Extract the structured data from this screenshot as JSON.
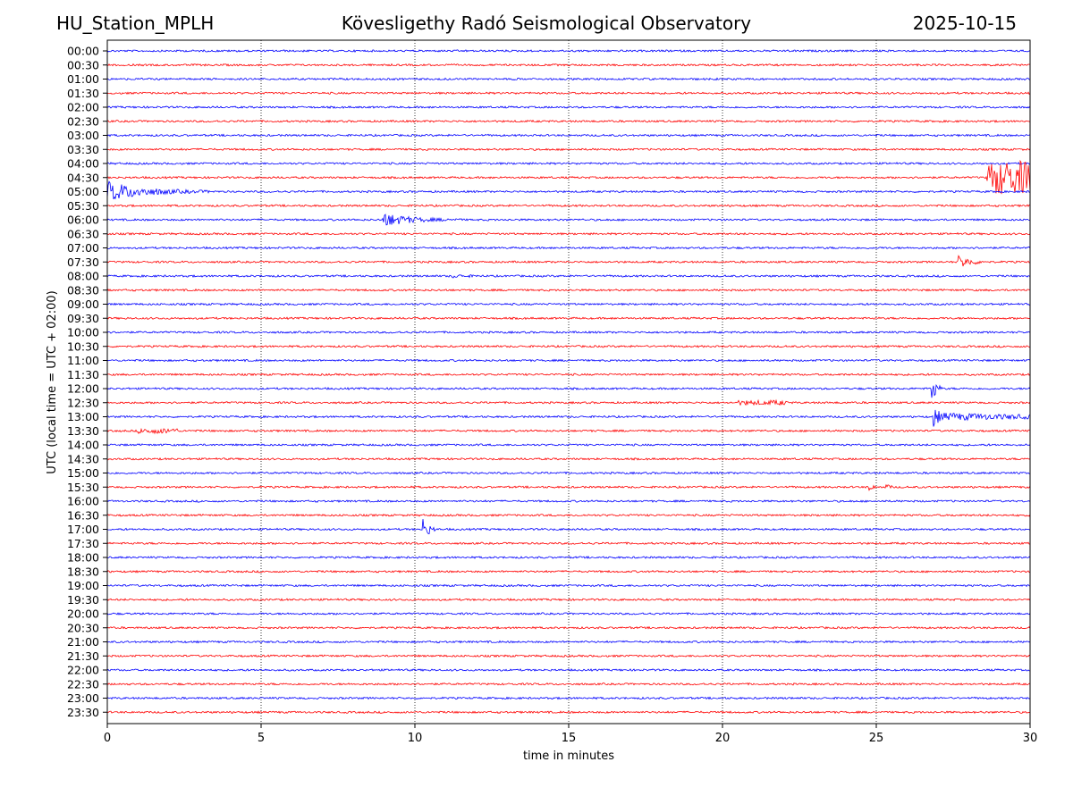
{
  "header": {
    "station": "HU_Station_MPLH",
    "title": "Kövesligethy Radó Seismological Observatory",
    "date": "2025-10-15"
  },
  "chart_data": {
    "type": "line",
    "subtype": "helicorder",
    "xlabel": "time in minutes",
    "ylabel": "UTC (local time = UTC + 02:00)",
    "xlim": [
      0,
      30
    ],
    "xticks": [
      "0",
      "5",
      "10",
      "15",
      "20",
      "25",
      "30"
    ],
    "grid": "vertical dotted at x ticks",
    "row_labels": [
      "00:00",
      "00:30",
      "01:00",
      "01:30",
      "02:00",
      "02:30",
      "03:00",
      "03:30",
      "04:00",
      "04:30",
      "05:00",
      "05:30",
      "06:00",
      "06:30",
      "07:00",
      "07:30",
      "08:00",
      "08:30",
      "09:00",
      "09:30",
      "10:00",
      "10:30",
      "11:00",
      "11:30",
      "12:00",
      "12:30",
      "13:00",
      "13:30",
      "14:00",
      "14:30",
      "15:00",
      "15:30",
      "16:00",
      "16:30",
      "17:00",
      "17:30",
      "18:00",
      "18:30",
      "19:00",
      "19:30",
      "20:00",
      "20:30",
      "21:00",
      "21:30",
      "22:00",
      "22:30",
      "23:00",
      "23:30"
    ],
    "colors": [
      "#0000ff",
      "#ff0000"
    ],
    "events": [
      {
        "row": "04:30",
        "start_min": 28.6,
        "duration_min": 1.4,
        "amp": 3.2,
        "decay": 99
      },
      {
        "row": "05:00",
        "start_min": 0.0,
        "duration_min": 3.5,
        "amp": 2.0,
        "decay": 1.1
      },
      {
        "row": "06:00",
        "start_min": 8.95,
        "duration_min": 2.6,
        "amp": 1.4,
        "decay": 0.8
      },
      {
        "row": "07:30",
        "start_min": 27.65,
        "duration_min": 0.9,
        "amp": 1.5,
        "decay": 0.35
      },
      {
        "row": "08:00",
        "start_min": 11.2,
        "duration_min": 0.9,
        "amp": 0.25,
        "decay": 0.5
      },
      {
        "row": "12:00",
        "start_min": 26.8,
        "duration_min": 0.35,
        "amp": 3.5,
        "decay": 0.12
      },
      {
        "row": "12:30",
        "start_min": 20.5,
        "duration_min": 1.6,
        "amp": 0.3,
        "decay": 99
      },
      {
        "row": "13:00",
        "start_min": 26.85,
        "duration_min": 0.2,
        "amp": 3.2,
        "decay": 0.08
      },
      {
        "row": "13:00",
        "start_min": 27.0,
        "duration_min": 3.0,
        "amp": 0.7,
        "decay": 3.0
      },
      {
        "row": "13:30",
        "start_min": 1.0,
        "duration_min": 1.3,
        "amp": 0.35,
        "decay": 99
      },
      {
        "row": "15:30",
        "start_min": 24.75,
        "duration_min": 0.25,
        "amp": 1.0,
        "decay": 0.1
      },
      {
        "row": "15:30",
        "start_min": 25.3,
        "duration_min": 0.25,
        "amp": 0.9,
        "decay": 0.1
      },
      {
        "row": "17:00",
        "start_min": 10.25,
        "duration_min": 0.4,
        "amp": 2.5,
        "decay": 0.18
      }
    ]
  }
}
